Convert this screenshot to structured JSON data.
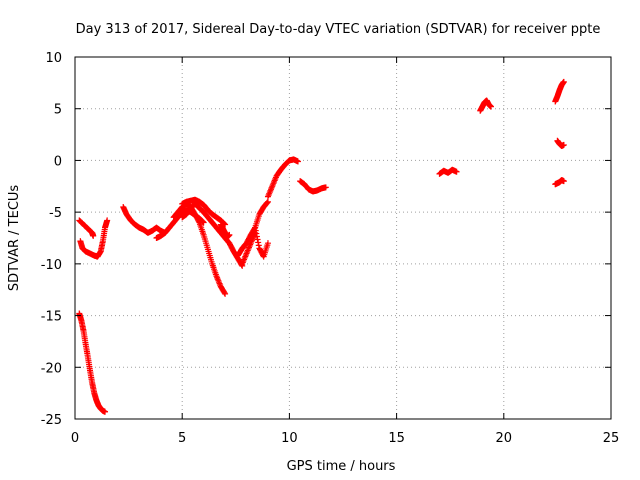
{
  "chart_data": {
    "type": "scatter",
    "title": "Day 313 of 2017, Sidereal Day-to-day VTEC variation (SDTVAR) for receiver ppte",
    "xlabel": "GPS time / hours",
    "ylabel": "SDTVAR / TECUs",
    "xlim": [
      0,
      25
    ],
    "ylim": [
      -25,
      10
    ],
    "x_ticks": [
      0,
      5,
      10,
      15,
      20,
      25
    ],
    "y_ticks": [
      -25,
      -20,
      -15,
      -10,
      -5,
      0,
      5,
      10
    ],
    "x_tick_labels": [
      "0",
      "5",
      "10",
      "15",
      "20",
      "25"
    ],
    "y_tick_labels": [
      "-25",
      "-20",
      "-15",
      "-10",
      "-5",
      "0",
      "5",
      "10"
    ],
    "grid": true,
    "marker": "+",
    "color": "#ff0000",
    "series": [
      {
        "name": "seg-a1",
        "x": [
          0.2,
          0.4,
          0.6,
          0.8,
          0.85
        ],
        "y": [
          -5.8,
          -6.2,
          -6.6,
          -7.0,
          -7.3
        ]
      },
      {
        "name": "seg-a2",
        "x": [
          0.25,
          0.35,
          0.5,
          0.7,
          0.9,
          1.05,
          1.2,
          1.3,
          1.4,
          1.5
        ],
        "y": [
          -7.8,
          -8.5,
          -8.8,
          -9.0,
          -9.2,
          -9.3,
          -8.8,
          -7.8,
          -6.5,
          -5.8
        ]
      },
      {
        "name": "seg-a3",
        "x": [
          0.2,
          0.3,
          0.4,
          0.5,
          0.6,
          0.7,
          0.8,
          0.9,
          1.0,
          1.1,
          1.2,
          1.3,
          1.4
        ],
        "y": [
          -14.8,
          -15.5,
          -16.5,
          -17.8,
          -19.0,
          -20.3,
          -21.5,
          -22.5,
          -23.2,
          -23.7,
          -24.0,
          -24.2,
          -24.3
        ]
      },
      {
        "name": "seg-b1",
        "x": [
          2.25,
          2.4,
          2.6,
          2.8,
          3.0,
          3.2,
          3.4,
          3.6,
          3.8,
          4.0,
          4.2
        ],
        "y": [
          -4.5,
          -5.2,
          -5.8,
          -6.2,
          -6.5,
          -6.7,
          -7.0,
          -6.8,
          -6.5,
          -6.8,
          -7.0
        ]
      },
      {
        "name": "seg-b2",
        "x": [
          3.8,
          4.0,
          4.2,
          4.4,
          4.6,
          4.8,
          5.0,
          5.2,
          5.4,
          5.6,
          5.8,
          6.0
        ],
        "y": [
          -7.5,
          -7.3,
          -7.0,
          -6.5,
          -6.0,
          -5.5,
          -5.0,
          -4.8,
          -5.0,
          -5.3,
          -5.6,
          -6.0
        ]
      },
      {
        "name": "seg-b3",
        "x": [
          4.6,
          4.8,
          5.0,
          5.2,
          5.4,
          5.6,
          5.8,
          6.0,
          6.2,
          6.4,
          6.6,
          6.8,
          7.0
        ],
        "y": [
          -5.5,
          -5.0,
          -4.5,
          -4.2,
          -4.5,
          -5.2,
          -6.0,
          -7.2,
          -8.6,
          -10.0,
          -11.2,
          -12.2,
          -12.9
        ]
      },
      {
        "name": "seg-b4",
        "x": [
          5.0,
          5.2,
          5.4,
          5.6,
          5.8,
          6.0,
          6.2,
          6.4,
          6.6,
          6.8,
          7.0,
          7.2,
          7.4,
          7.6,
          7.8
        ],
        "y": [
          -5.5,
          -5.2,
          -4.6,
          -4.2,
          -4.6,
          -5.0,
          -5.5,
          -6.0,
          -6.5,
          -7.0,
          -7.5,
          -8.0,
          -8.8,
          -9.5,
          -10.2
        ]
      },
      {
        "name": "seg-b5",
        "x": [
          5.0,
          5.2,
          5.4,
          5.6,
          5.8,
          6.0,
          6.2,
          6.4,
          6.6,
          6.8,
          7.0
        ],
        "y": [
          -4.2,
          -4.0,
          -3.9,
          -3.8,
          -4.0,
          -4.3,
          -4.8,
          -5.2,
          -5.5,
          -5.8,
          -6.2
        ]
      },
      {
        "name": "seg-c1",
        "x": [
          6.8,
          6.9,
          7.0,
          7.1,
          7.2
        ],
        "y": [
          -6.2,
          -6.6,
          -7.0,
          -7.4,
          -7.2
        ]
      },
      {
        "name": "seg-c2",
        "x": [
          7.6,
          7.8,
          8.0,
          8.2,
          8.4,
          8.6,
          8.8,
          9.0
        ],
        "y": [
          -9.2,
          -8.5,
          -8.0,
          -7.2,
          -6.5,
          -8.5,
          -9.3,
          -8.0
        ]
      },
      {
        "name": "seg-c3",
        "x": [
          7.8,
          8.0,
          8.2,
          8.4
        ],
        "y": [
          -10.0,
          -9.0,
          -8.0,
          -7.0
        ]
      },
      {
        "name": "seg-c4",
        "x": [
          8.4,
          8.6,
          8.8,
          9.0
        ],
        "y": [
          -6.5,
          -5.2,
          -4.5,
          -4.0
        ]
      },
      {
        "name": "seg-d1",
        "x": [
          9.0,
          9.2,
          9.4,
          9.6,
          9.8,
          10.0,
          10.2,
          10.4
        ],
        "y": [
          -3.5,
          -2.5,
          -1.5,
          -0.9,
          -0.4,
          0.0,
          0.1,
          -0.1
        ]
      },
      {
        "name": "seg-e1",
        "x": [
          10.5,
          10.7,
          10.9,
          11.1,
          11.3,
          11.5,
          11.7
        ],
        "y": [
          -2.0,
          -2.3,
          -2.8,
          -3.0,
          -2.9,
          -2.7,
          -2.6
        ]
      },
      {
        "name": "seg-f1",
        "x": [
          17.0,
          17.2,
          17.4,
          17.6,
          17.8
        ],
        "y": [
          -1.3,
          -1.0,
          -1.2,
          -0.9,
          -1.1
        ]
      },
      {
        "name": "seg-g1",
        "x": [
          18.9,
          19.0,
          19.1,
          19.2,
          19.3,
          19.4
        ],
        "y": [
          4.8,
          5.2,
          5.6,
          5.8,
          5.4,
          5.2
        ]
      },
      {
        "name": "seg-h1",
        "x": [
          22.4,
          22.5,
          22.6,
          22.7,
          22.8
        ],
        "y": [
          5.7,
          6.2,
          6.8,
          7.3,
          7.6
        ]
      },
      {
        "name": "seg-h2",
        "x": [
          22.5,
          22.6,
          22.7,
          22.8
        ],
        "y": [
          1.9,
          1.6,
          1.4,
          1.5
        ]
      },
      {
        "name": "seg-h3",
        "x": [
          22.4,
          22.5,
          22.6,
          22.7,
          22.8
        ],
        "y": [
          -2.3,
          -2.2,
          -2.1,
          -1.9,
          -2.0
        ]
      }
    ]
  }
}
